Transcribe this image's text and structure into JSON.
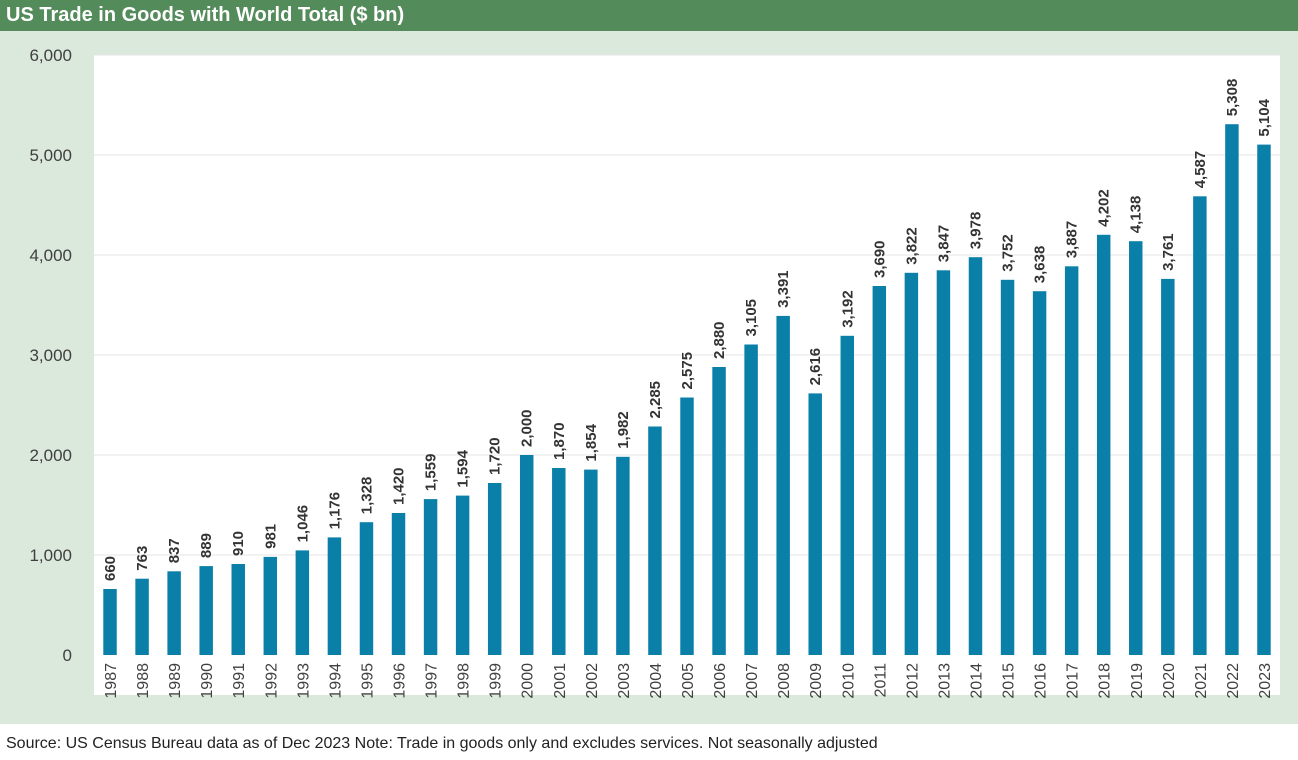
{
  "header": {
    "title": "US Trade in Goods with World Total ($ bn)"
  },
  "footer": {
    "source": "Source: US Census Bureau data as of Dec 2023 Note: Trade in goods only and excludes services. Not seasonally adjusted"
  },
  "colors": {
    "header_bg": "#548b5a",
    "panel_bg": "#dbe8dc",
    "bar": "#0a7fa8"
  },
  "chart_data": {
    "type": "bar",
    "title": "US Trade in Goods with World Total ($ bn)",
    "xlabel": "",
    "ylabel": "",
    "ylim": [
      0,
      6000
    ],
    "yticks": [
      0,
      1000,
      2000,
      3000,
      4000,
      5000,
      6000
    ],
    "ytick_labels": [
      "0",
      "1,000",
      "2,000",
      "3,000",
      "4,000",
      "5,000",
      "6,000"
    ],
    "grid": true,
    "categories": [
      "1987",
      "1988",
      "1989",
      "1990",
      "1991",
      "1992",
      "1993",
      "1994",
      "1995",
      "1996",
      "1997",
      "1998",
      "1999",
      "2000",
      "2001",
      "2002",
      "2003",
      "2004",
      "2005",
      "2006",
      "2007",
      "2008",
      "2009",
      "2010",
      "2011",
      "2012",
      "2013",
      "2014",
      "2015",
      "2016",
      "2017",
      "2018",
      "2019",
      "2020",
      "2021",
      "2022",
      "2023"
    ],
    "values": [
      660,
      763,
      837,
      889,
      910,
      981,
      1046,
      1176,
      1328,
      1420,
      1559,
      1594,
      1720,
      2000,
      1870,
      1854,
      1982,
      2285,
      2575,
      2880,
      3105,
      3391,
      2616,
      3192,
      3690,
      3822,
      3847,
      3978,
      3752,
      3638,
      3887,
      4202,
      4138,
      3761,
      4587,
      5308,
      5104
    ],
    "value_labels": [
      "660",
      "763",
      "837",
      "889",
      "910",
      "981",
      "1,046",
      "1,176",
      "1,328",
      "1,420",
      "1,559",
      "1,594",
      "1,720",
      "2,000",
      "1,870",
      "1,854",
      "1,982",
      "2,285",
      "2,575",
      "2,880",
      "3,105",
      "3,391",
      "2,616",
      "3,192",
      "3,690",
      "3,822",
      "3,847",
      "3,978",
      "3,752",
      "3,638",
      "3,887",
      "4,202",
      "4,138",
      "3,761",
      "4,587",
      "5,308",
      "5,104"
    ]
  }
}
